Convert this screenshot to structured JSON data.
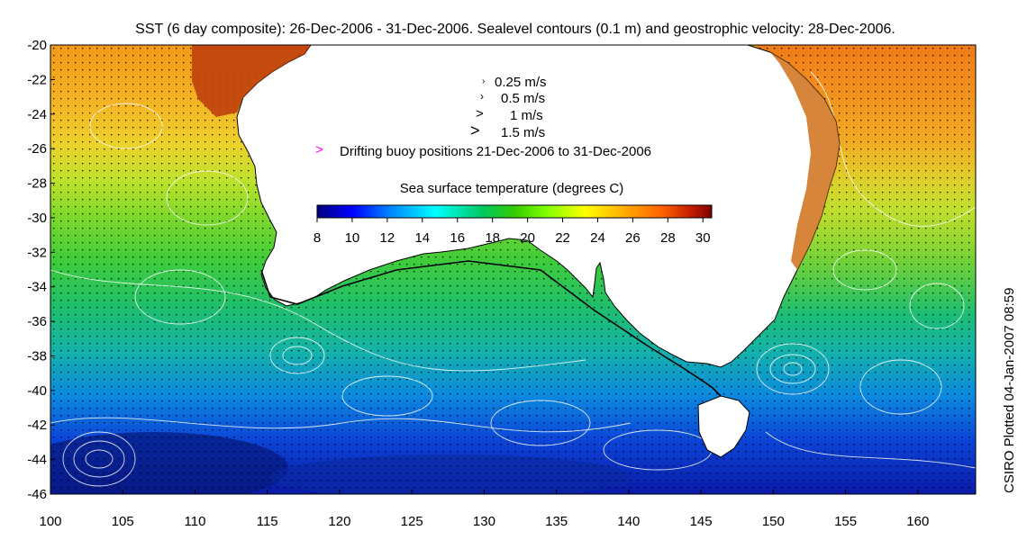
{
  "title": "SST (6 day composite): 26-Dec-2006 - 31-Dec-2006. Sealevel contours (0.1 m) and geostrophic velocity: 28-Dec-2006.",
  "side_label": "CSIRO Plotted 04-Jan-2007 08:59",
  "legend": {
    "velocity_scale": [
      "0.25 m/s",
      "0.5 m/s",
      "1 m/s",
      "1.5 m/s"
    ],
    "buoy_marker": ">",
    "buoy_label": "Drifting buoy positions 21-Dec-2006 to 31-Dec-2006",
    "buoy_color": "#ff00ff"
  },
  "colorbar": {
    "title": "Sea surface temperature (degrees C)",
    "ticks": [
      "8",
      "10",
      "12",
      "14",
      "16",
      "18",
      "20",
      "22",
      "24",
      "26",
      "28",
      "30"
    ],
    "range": [
      8,
      30.5
    ],
    "colors": [
      "#00007f",
      "#0000ff",
      "#007fff",
      "#00ffff",
      "#00c860",
      "#33cc00",
      "#7fff00",
      "#ffff00",
      "#ffaa00",
      "#ff6600",
      "#cc2200",
      "#7f0000"
    ]
  },
  "map": {
    "lon_ticks": [
      "100",
      "105",
      "110",
      "115",
      "120",
      "125",
      "130",
      "135",
      "140",
      "145",
      "150",
      "155",
      "160"
    ],
    "lat_ticks": [
      "-20",
      "-22",
      "-24",
      "-26",
      "-28",
      "-30",
      "-32",
      "-34",
      "-36",
      "-38",
      "-40",
      "-42",
      "-44",
      "-46"
    ],
    "lon_range": [
      100,
      164
    ],
    "lat_range": [
      -46,
      -20
    ],
    "land_color": "#ffffff",
    "contour_color": "#ffffff",
    "vector_color": "#000000"
  }
}
